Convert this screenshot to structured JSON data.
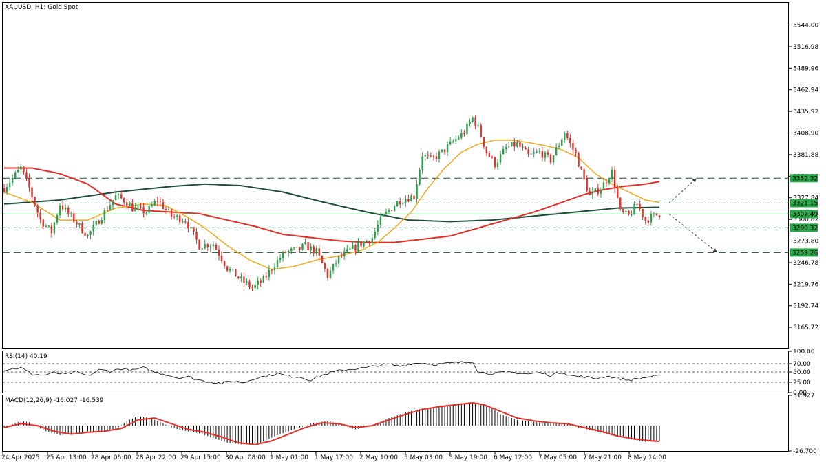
{
  "window_title": "XAUUSD, H1:  Gold Spot",
  "colors": {
    "bull": "#2e9e4a",
    "bear": "#e0302a",
    "ma_fast": "#f0a81c",
    "ma_mid": "#e0302a",
    "ma_slow": "#1f4a36",
    "level": "#1f4a36",
    "current": "#2e9e4a",
    "tag_bg": "#29a84a",
    "rsi_line": "#000000",
    "macd_signal": "#e0302a",
    "macd_hist": "#000000"
  },
  "chart_data": [
    {
      "type": "candlestick",
      "title": "XAUUSD, H1:  Gold Spot",
      "ylim": [
        3140,
        3572
      ],
      "y_ticks": [
        3544.0,
        3516.98,
        3489.96,
        3462.94,
        3435.92,
        3408.9,
        3381.88,
        3354.86,
        3327.84,
        3300.82,
        3273.8,
        3246.78,
        3219.76,
        3192.74,
        3165.72
      ],
      "y_tick_labels": [
        "3544.00",
        "3516.98",
        "3489.96",
        "3462.94",
        "3435.92",
        "3408.90",
        "3381.88",
        "3354.86",
        "3327.84",
        "3300.82",
        "3273.80",
        "3246.78",
        "3219.76",
        "3192.74",
        "3165.72"
      ],
      "x_labels": [
        "24 Apr 2025",
        "25 Apr 13:00",
        "28 Apr 06:00",
        "28 Apr 22:00",
        "29 Apr 15:00",
        "30 Apr 08:00",
        "1 May 01:00",
        "1 May 17:00",
        "2 May 10:00",
        "5 May 03:00",
        "5 May 19:00",
        "6 May 12:00",
        "7 May 05:00",
        "7 May 21:00",
        "8 May 14:00"
      ],
      "levels": [
        {
          "value": 3352.32,
          "label": "3352.32"
        },
        {
          "value": 3321.15,
          "label": "3321.15"
        },
        {
          "value": 3290.32,
          "label": "3290.32"
        },
        {
          "value": 3259.26,
          "label": "3259.26"
        }
      ],
      "current_price": {
        "value": 3307.49,
        "label": "3307.49"
      },
      "close_path": [
        [
          0,
          3340
        ],
        [
          6,
          3365
        ],
        [
          9,
          3340
        ],
        [
          13,
          3300
        ],
        [
          17,
          3285
        ],
        [
          20,
          3320
        ],
        [
          25,
          3300
        ],
        [
          30,
          3280
        ],
        [
          35,
          3305
        ],
        [
          40,
          3330
        ],
        [
          43,
          3325
        ],
        [
          46,
          3315
        ],
        [
          51,
          3310
        ],
        [
          55,
          3325
        ],
        [
          60,
          3305
        ],
        [
          65,
          3300
        ],
        [
          70,
          3268
        ],
        [
          75,
          3270
        ],
        [
          80,
          3240
        ],
        [
          85,
          3225
        ],
        [
          89,
          3215
        ],
        [
          93,
          3225
        ],
        [
          97,
          3245
        ],
        [
          101,
          3260
        ],
        [
          105,
          3262
        ],
        [
          108,
          3268
        ],
        [
          112,
          3260
        ],
        [
          116,
          3230
        ],
        [
          120,
          3252
        ],
        [
          124,
          3262
        ],
        [
          128,
          3270
        ],
        [
          132,
          3278
        ],
        [
          135,
          3300
        ],
        [
          138,
          3312
        ],
        [
          142,
          3325
        ],
        [
          147,
          3330
        ],
        [
          150,
          3382
        ],
        [
          153,
          3375
        ],
        [
          157,
          3385
        ],
        [
          161,
          3398
        ],
        [
          165,
          3410
        ],
        [
          168,
          3428
        ],
        [
          170,
          3415
        ],
        [
          173,
          3385
        ],
        [
          176,
          3370
        ],
        [
          180,
          3390
        ],
        [
          184,
          3395
        ],
        [
          188,
          3380
        ],
        [
          192,
          3385
        ],
        [
          196,
          3375
        ],
        [
          199,
          3395
        ],
        [
          201,
          3410
        ],
        [
          203,
          3395
        ],
        [
          205,
          3382
        ],
        [
          207,
          3360
        ],
        [
          210,
          3330
        ],
        [
          214,
          3340
        ],
        [
          218,
          3360
        ],
        [
          221,
          3310
        ],
        [
          224,
          3305
        ],
        [
          227,
          3320
        ],
        [
          230,
          3300
        ],
        [
          233,
          3305
        ],
        [
          235,
          3307.49
        ]
      ],
      "ma_fast_path": [
        [
          0,
          3335
        ],
        [
          10,
          3322
        ],
        [
          20,
          3300
        ],
        [
          30,
          3300
        ],
        [
          40,
          3315
        ],
        [
          50,
          3320
        ],
        [
          58,
          3318
        ],
        [
          65,
          3305
        ],
        [
          72,
          3290
        ],
        [
          80,
          3268
        ],
        [
          88,
          3250
        ],
        [
          96,
          3238
        ],
        [
          104,
          3242
        ],
        [
          112,
          3250
        ],
        [
          120,
          3255
        ],
        [
          128,
          3262
        ],
        [
          134,
          3272
        ],
        [
          140,
          3290
        ],
        [
          146,
          3310
        ],
        [
          152,
          3340
        ],
        [
          158,
          3365
        ],
        [
          164,
          3385
        ],
        [
          170,
          3395
        ],
        [
          176,
          3400
        ],
        [
          182,
          3400
        ],
        [
          188,
          3397
        ],
        [
          194,
          3393
        ],
        [
          200,
          3388
        ],
        [
          206,
          3378
        ],
        [
          212,
          3358
        ],
        [
          218,
          3345
        ],
        [
          224,
          3335
        ],
        [
          230,
          3325
        ],
        [
          235,
          3322
        ]
      ],
      "ma_mid_path": [
        [
          0,
          3365
        ],
        [
          10,
          3365
        ],
        [
          20,
          3358
        ],
        [
          30,
          3345
        ],
        [
          40,
          3320
        ],
        [
          50,
          3312
        ],
        [
          60,
          3310
        ],
        [
          70,
          3308
        ],
        [
          80,
          3300
        ],
        [
          90,
          3292
        ],
        [
          100,
          3282
        ],
        [
          110,
          3278
        ],
        [
          120,
          3274
        ],
        [
          130,
          3272
        ],
        [
          140,
          3272
        ],
        [
          150,
          3276
        ],
        [
          160,
          3280
        ],
        [
          170,
          3290
        ],
        [
          180,
          3300
        ],
        [
          190,
          3310
        ],
        [
          200,
          3322
        ],
        [
          208,
          3332
        ],
        [
          215,
          3338
        ],
        [
          222,
          3342
        ],
        [
          230,
          3345
        ],
        [
          235,
          3348
        ]
      ],
      "ma_slow_path": [
        [
          0,
          3320
        ],
        [
          20,
          3325
        ],
        [
          40,
          3335
        ],
        [
          60,
          3342
        ],
        [
          72,
          3345
        ],
        [
          85,
          3343
        ],
        [
          100,
          3335
        ],
        [
          115,
          3322
        ],
        [
          130,
          3310
        ],
        [
          145,
          3300
        ],
        [
          160,
          3298
        ],
        [
          175,
          3300
        ],
        [
          190,
          3305
        ],
        [
          205,
          3310
        ],
        [
          220,
          3315
        ],
        [
          235,
          3316
        ]
      ],
      "arrows": [
        {
          "from": [
            3321.15,
            3321.15
          ],
          "dir": "up",
          "target": 3352.32
        },
        {
          "from": [
            3307.49,
            3307.49
          ],
          "dir": "down",
          "target": 3259.26
        }
      ]
    },
    {
      "type": "line",
      "title": "RSI(14) 40.19",
      "ylim": [
        0,
        100
      ],
      "y_ticks": [
        100,
        70,
        50,
        25,
        0
      ],
      "y_tick_labels": [
        "100.00",
        "70.00",
        "50.00",
        "25.00",
        "0.00"
      ],
      "levels": [
        70,
        50,
        25
      ],
      "series": [
        {
          "values": [
            [
              0,
              55
            ],
            [
              6,
              60
            ],
            [
              10,
              45
            ],
            [
              14,
              42
            ],
            [
              18,
              48
            ],
            [
              22,
              44
            ],
            [
              26,
              50
            ],
            [
              30,
              40
            ],
            [
              34,
              55
            ],
            [
              38,
              52
            ],
            [
              42,
              58
            ],
            [
              46,
              54
            ],
            [
              50,
              60
            ],
            [
              54,
              50
            ],
            [
              58,
              44
            ],
            [
              62,
              36
            ],
            [
              66,
              38
            ],
            [
              70,
              30
            ],
            [
              74,
              26
            ],
            [
              78,
              22
            ],
            [
              82,
              28
            ],
            [
              86,
              24
            ],
            [
              90,
              35
            ],
            [
              94,
              40
            ],
            [
              98,
              46
            ],
            [
              102,
              40
            ],
            [
              106,
              38
            ],
            [
              110,
              30
            ],
            [
              114,
              42
            ],
            [
              118,
              50
            ],
            [
              122,
              55
            ],
            [
              126,
              58
            ],
            [
              130,
              60
            ],
            [
              134,
              66
            ],
            [
              138,
              68
            ],
            [
              142,
              64
            ],
            [
              146,
              70
            ],
            [
              150,
              72
            ],
            [
              154,
              68
            ],
            [
              158,
              70
            ],
            [
              162,
              72
            ],
            [
              166,
              74
            ],
            [
              168,
              76
            ],
            [
              170,
              50
            ],
            [
              172,
              48
            ],
            [
              176,
              46
            ],
            [
              180,
              50
            ],
            [
              184,
              48
            ],
            [
              188,
              45
            ],
            [
              192,
              48
            ],
            [
              196,
              42
            ],
            [
              200,
              50
            ],
            [
              204,
              40
            ],
            [
              208,
              38
            ],
            [
              212,
              34
            ],
            [
              216,
              40
            ],
            [
              220,
              35
            ],
            [
              224,
              30
            ],
            [
              228,
              34
            ],
            [
              231,
              38
            ],
            [
              235,
              40.19
            ]
          ]
        }
      ]
    },
    {
      "type": "bar",
      "title": "MACD(12,26,9) -16.027 -16.539",
      "ylim": [
        -26.7,
        31.927
      ],
      "y_ticks": [
        31.927,
        -26.7
      ],
      "y_tick_labels": [
        "31.927",
        "-26.700"
      ],
      "hist_path": [
        [
          0,
          -2
        ],
        [
          6,
          5
        ],
        [
          10,
          3
        ],
        [
          14,
          -5
        ],
        [
          20,
          -10
        ],
        [
          26,
          -8
        ],
        [
          30,
          -6
        ],
        [
          36,
          -7
        ],
        [
          40,
          -4
        ],
        [
          44,
          5
        ],
        [
          48,
          10
        ],
        [
          52,
          8
        ],
        [
          56,
          4
        ],
        [
          60,
          -2
        ],
        [
          64,
          -5
        ],
        [
          70,
          -8
        ],
        [
          76,
          -14
        ],
        [
          80,
          -18
        ],
        [
          86,
          -20
        ],
        [
          92,
          -18
        ],
        [
          98,
          -10
        ],
        [
          104,
          -4
        ],
        [
          110,
          2
        ],
        [
          116,
          5
        ],
        [
          120,
          2
        ],
        [
          126,
          -4
        ],
        [
          132,
          0
        ],
        [
          138,
          8
        ],
        [
          144,
          14
        ],
        [
          150,
          18
        ],
        [
          156,
          20
        ],
        [
          162,
          22
        ],
        [
          166,
          24
        ],
        [
          170,
          24
        ],
        [
          174,
          20
        ],
        [
          178,
          12
        ],
        [
          184,
          6
        ],
        [
          190,
          4
        ],
        [
          196,
          2
        ],
        [
          200,
          3
        ],
        [
          206,
          -2
        ],
        [
          212,
          -6
        ],
        [
          218,
          -10
        ],
        [
          224,
          -14
        ],
        [
          230,
          -17
        ],
        [
          235,
          -16.027
        ]
      ],
      "signal_path": [
        [
          0,
          -2
        ],
        [
          6,
          2
        ],
        [
          12,
          0
        ],
        [
          18,
          -6
        ],
        [
          24,
          -9
        ],
        [
          30,
          -7
        ],
        [
          36,
          -6
        ],
        [
          42,
          -3
        ],
        [
          48,
          6
        ],
        [
          54,
          8
        ],
        [
          60,
          2
        ],
        [
          66,
          -4
        ],
        [
          72,
          -7
        ],
        [
          78,
          -12
        ],
        [
          84,
          -18
        ],
        [
          90,
          -20
        ],
        [
          96,
          -16
        ],
        [
          102,
          -9
        ],
        [
          108,
          -2
        ],
        [
          114,
          3
        ],
        [
          120,
          2
        ],
        [
          126,
          -2
        ],
        [
          132,
          0
        ],
        [
          138,
          6
        ],
        [
          144,
          12
        ],
        [
          150,
          17
        ],
        [
          156,
          20
        ],
        [
          162,
          22
        ],
        [
          168,
          24
        ],
        [
          172,
          22
        ],
        [
          178,
          15
        ],
        [
          184,
          8
        ],
        [
          190,
          5
        ],
        [
          196,
          3
        ],
        [
          202,
          2
        ],
        [
          208,
          -2
        ],
        [
          214,
          -6
        ],
        [
          220,
          -11
        ],
        [
          226,
          -14
        ],
        [
          232,
          -16
        ],
        [
          235,
          -16.539
        ]
      ]
    }
  ]
}
